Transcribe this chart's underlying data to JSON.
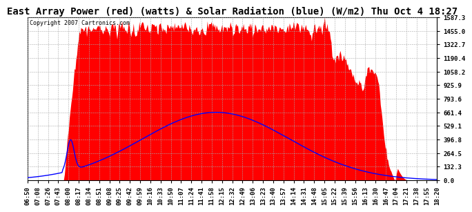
{
  "title": "East Array Power (red) (watts) & Solar Radiation (blue) (W/m2) Thu Oct 4 18:27",
  "copyright": "Copyright 2007 Cartronics.com",
  "bg_color": "#ffffff",
  "plot_bg_color": "#ffffff",
  "grid_color": "#aaaaaa",
  "y_ticks": [
    0.0,
    132.3,
    264.5,
    396.8,
    529.1,
    661.4,
    793.6,
    925.9,
    1058.2,
    1190.4,
    1322.7,
    1455.0,
    1587.3
  ],
  "x_tick_labels": [
    "06:50",
    "07:08",
    "07:26",
    "07:43",
    "08:00",
    "08:17",
    "08:34",
    "08:51",
    "09:08",
    "09:25",
    "09:42",
    "09:59",
    "10:16",
    "10:33",
    "10:50",
    "11:07",
    "11:24",
    "11:41",
    "11:58",
    "12:15",
    "12:32",
    "12:49",
    "13:06",
    "13:23",
    "13:40",
    "13:57",
    "14:14",
    "14:31",
    "14:48",
    "15:05",
    "15:22",
    "15:39",
    "15:56",
    "16:13",
    "16:30",
    "16:47",
    "17:04",
    "17:21",
    "17:38",
    "17:55",
    "18:20"
  ],
  "red_color": "#ff0000",
  "blue_color": "#0000ff",
  "title_fontsize": 10,
  "tick_fontsize": 6.5,
  "copyright_fontsize": 6
}
